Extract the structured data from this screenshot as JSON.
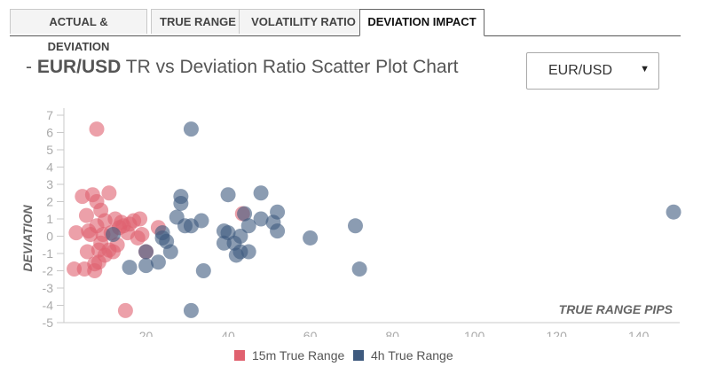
{
  "tabs": [
    {
      "label": "ACTUAL & DEVIATION",
      "active": false
    },
    {
      "label": "TRUE RANGE",
      "active": false
    },
    {
      "label": "VOLATILITY RATIO",
      "active": false
    },
    {
      "label": "DEVIATION IMPACT",
      "active": true
    }
  ],
  "header": {
    "prefix": "- ",
    "pair": "EUR/USD",
    "title_rest": " TR vs Deviation Ratio Scatter Plot Chart"
  },
  "pair_select": {
    "value": "EUR/USD",
    "caret": "▼"
  },
  "chart_data": {
    "type": "scatter",
    "xlabel": "TRUE RANGE PIPS",
    "ylabel": "DEVIATION",
    "xlim": [
      0,
      150
    ],
    "ylim": [
      -5,
      7
    ],
    "x_ticks": [
      20,
      40,
      60,
      80,
      100,
      120,
      140
    ],
    "y_ticks": [
      7,
      6,
      5,
      4,
      3,
      2,
      1,
      0,
      -1,
      -2,
      -3,
      -4,
      -5
    ],
    "grid": false,
    "legend_position": "bottom",
    "series": [
      {
        "name": "15m True Range",
        "color": "#e0616f",
        "points": [
          [
            8,
            6.2
          ],
          [
            2.5,
            -1.9
          ],
          [
            3,
            0.2
          ],
          [
            4.5,
            2.3
          ],
          [
            5,
            -1.9
          ],
          [
            5.5,
            1.2
          ],
          [
            5.7,
            -0.9
          ],
          [
            6,
            0.3
          ],
          [
            6.5,
            0.1
          ],
          [
            7,
            2.4
          ],
          [
            7.5,
            -1.6
          ],
          [
            7.5,
            -2.0
          ],
          [
            8,
            0.6
          ],
          [
            8,
            2.0
          ],
          [
            8.5,
            -0.8
          ],
          [
            8.5,
            -1.5
          ],
          [
            9,
            -0.4
          ],
          [
            9,
            1.5
          ],
          [
            9.5,
            0.1
          ],
          [
            10,
            -1.1
          ],
          [
            10,
            0.9
          ],
          [
            11,
            -0.8
          ],
          [
            11,
            2.5
          ],
          [
            11.5,
            0.2
          ],
          [
            12,
            -0.9
          ],
          [
            12.5,
            1.0
          ],
          [
            13,
            -0.5
          ],
          [
            13.5,
            0.5
          ],
          [
            14,
            0.8
          ],
          [
            14.5,
            0.6
          ],
          [
            15,
            -4.3
          ],
          [
            15.5,
            0.2
          ],
          [
            16,
            0.7
          ],
          [
            17,
            0.9
          ],
          [
            18,
            -0.1
          ],
          [
            18.5,
            1.0
          ],
          [
            19,
            0.1
          ],
          [
            20,
            -0.9
          ],
          [
            23,
            0.5
          ],
          [
            43.5,
            1.3
          ]
        ]
      },
      {
        "name": "4h True Range",
        "color": "#3e5a7e",
        "points": [
          [
            31,
            6.2
          ],
          [
            31,
            -4.3
          ],
          [
            12,
            0.1
          ],
          [
            16,
            -1.8
          ],
          [
            20,
            -1.7
          ],
          [
            20,
            -0.9
          ],
          [
            23,
            -1.5
          ],
          [
            24,
            -0.1
          ],
          [
            24,
            0.2
          ],
          [
            25,
            -0.3
          ],
          [
            26,
            -0.9
          ],
          [
            27.5,
            1.1
          ],
          [
            28.5,
            2.3
          ],
          [
            28.5,
            1.9
          ],
          [
            29.5,
            0.6
          ],
          [
            31,
            0.6
          ],
          [
            33.5,
            0.9
          ],
          [
            34,
            -2.0
          ],
          [
            39,
            0.3
          ],
          [
            39,
            -0.4
          ],
          [
            40,
            2.4
          ],
          [
            40,
            0.2
          ],
          [
            41.5,
            -0.4
          ],
          [
            42,
            -1.1
          ],
          [
            43,
            -0.9
          ],
          [
            43,
            0.0
          ],
          [
            44,
            1.3
          ],
          [
            45,
            -0.9
          ],
          [
            45,
            0.6
          ],
          [
            48,
            2.5
          ],
          [
            48,
            1.0
          ],
          [
            51,
            0.8
          ],
          [
            52,
            0.3
          ],
          [
            52,
            1.4
          ],
          [
            60,
            -0.1
          ],
          [
            71,
            0.6
          ],
          [
            72,
            -1.9
          ],
          [
            148.5,
            1.4
          ]
        ]
      }
    ]
  }
}
